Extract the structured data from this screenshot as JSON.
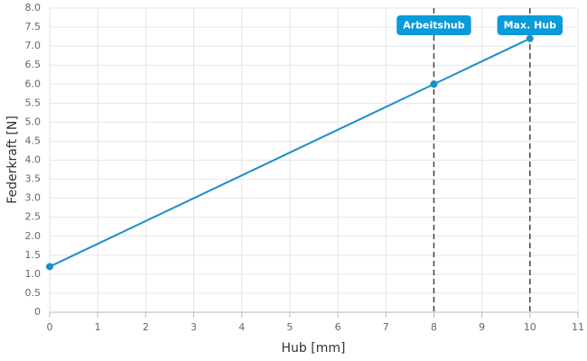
{
  "chart_data": {
    "type": "line",
    "x_label": "Hub [mm]",
    "y_label": "Federkraft [N]",
    "x": [
      0,
      8,
      10
    ],
    "series": [
      {
        "name": "Federkraft",
        "color": "#1a8fc9",
        "values": [
          1.2,
          6.0,
          7.2
        ]
      }
    ],
    "xlim": [
      0,
      11
    ],
    "xticks": [
      0,
      1,
      2,
      3,
      4,
      5,
      6,
      7,
      8,
      9,
      10,
      11
    ],
    "ylim": [
      0,
      8
    ],
    "yticks": [
      0,
      0.5,
      {
        "value": 1,
        "label": "1.0"
      },
      1.5,
      {
        "value": 2,
        "label": "2.0"
      },
      2.5,
      {
        "value": 3,
        "label": "3.0"
      },
      3.5,
      {
        "value": 4,
        "label": "4.0"
      },
      4.5,
      {
        "value": 5,
        "label": "5.0"
      },
      5.5,
      {
        "value": 6,
        "label": "6.0"
      },
      6.5,
      {
        "value": 7,
        "label": "7.0"
      },
      7.5,
      {
        "value": 8,
        "label": "8.0"
      }
    ],
    "grid": true,
    "annotations": [
      {
        "x": 8,
        "label": "Arbeitshub",
        "color": "#0a9bd9"
      },
      {
        "x": 10,
        "label": "Max. Hub",
        "color": "#0a9bd9"
      }
    ]
  }
}
